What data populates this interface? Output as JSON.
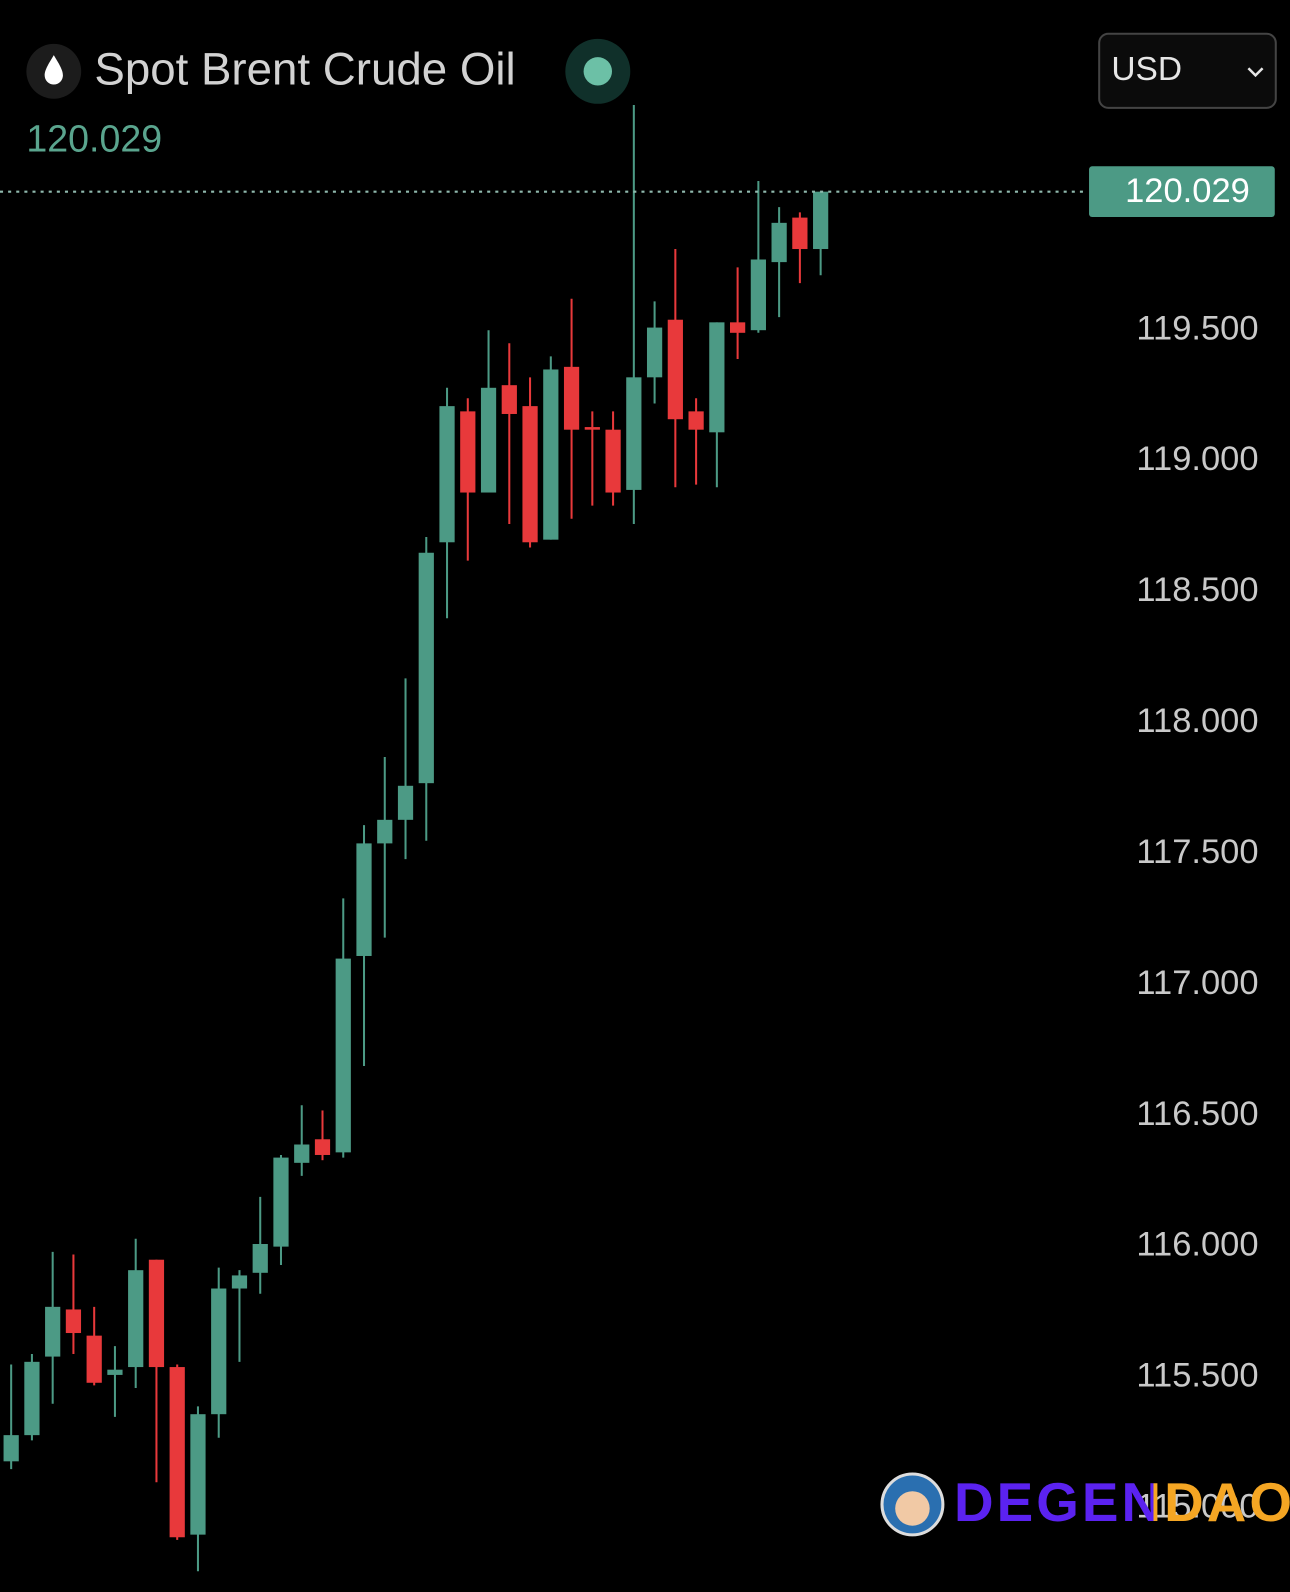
{
  "chart_data": {
    "type": "candlestick",
    "title": "Spot Brent Crude Oil",
    "currency": "USD",
    "last_price": 120.029,
    "up_color": "#4c9a85",
    "down_color": "#e8393b",
    "grid": false,
    "ylim": [
      114.682,
      120.76
    ],
    "yticks": [
      {
        "value": 115,
        "label": "115.000"
      },
      {
        "value": 115.5,
        "label": "115.500"
      },
      {
        "value": 116,
        "label": "116.000"
      },
      {
        "value": 116.5,
        "label": "116.500"
      },
      {
        "value": 117,
        "label": "117.000"
      },
      {
        "value": 117.5,
        "label": "117.500"
      },
      {
        "value": 118,
        "label": "118.000"
      },
      {
        "value": 118.5,
        "label": "118.500"
      },
      {
        "value": 119,
        "label": "119.000"
      },
      {
        "value": 119.5,
        "label": "119.500"
      }
    ],
    "open": [
      115.18,
      115.28,
      115.58,
      115.76,
      115.66,
      115.51,
      115.54,
      115.95,
      115.54,
      114.9,
      115.36,
      115.84,
      115.9,
      116.0,
      116.32,
      116.41,
      116.36,
      117.11,
      117.54,
      117.63,
      117.77,
      118.69,
      119.19,
      118.88,
      119.29,
      119.21,
      118.7,
      119.36,
      119.13,
      119.12,
      118.89,
      119.32,
      119.54,
      119.19,
      119.11,
      119.53,
      119.5,
      119.76,
      119.93,
      119.81
    ],
    "high": [
      115.55,
      115.59,
      115.98,
      115.97,
      115.77,
      115.62,
      116.03,
      115.95,
      115.55,
      115.39,
      115.92,
      115.91,
      116.19,
      116.35,
      116.54,
      116.52,
      117.33,
      117.61,
      117.87,
      118.17,
      118.71,
      119.28,
      119.24,
      119.5,
      119.45,
      119.32,
      119.4,
      119.62,
      119.19,
      119.19,
      120.36,
      119.61,
      119.81,
      119.24,
      119.53,
      119.74,
      120.07,
      119.97,
      119.95,
      120.029
    ],
    "low": [
      115.15,
      115.26,
      115.4,
      115.59,
      115.47,
      115.35,
      115.46,
      115.1,
      114.88,
      114.76,
      115.27,
      115.56,
      115.82,
      115.93,
      116.27,
      116.33,
      116.34,
      116.69,
      117.18,
      117.48,
      117.55,
      118.4,
      118.62,
      118.88,
      118.76,
      118.67,
      118.7,
      118.78,
      118.83,
      118.83,
      118.76,
      119.22,
      118.9,
      118.91,
      118.9,
      119.39,
      119.49,
      119.55,
      119.68,
      119.71
    ],
    "close": [
      115.28,
      115.56,
      115.77,
      115.67,
      115.48,
      115.53,
      115.91,
      115.54,
      114.89,
      115.36,
      115.84,
      115.89,
      116.01,
      116.34,
      116.39,
      116.35,
      117.1,
      117.54,
      117.63,
      117.76,
      118.65,
      119.21,
      118.88,
      119.28,
      119.18,
      118.69,
      119.35,
      119.12,
      119.12,
      118.88,
      119.32,
      119.51,
      119.16,
      119.12,
      119.53,
      119.49,
      119.77,
      119.91,
      119.81,
      120.029
    ],
    "watermark": "DEGENDAO!"
  }
}
